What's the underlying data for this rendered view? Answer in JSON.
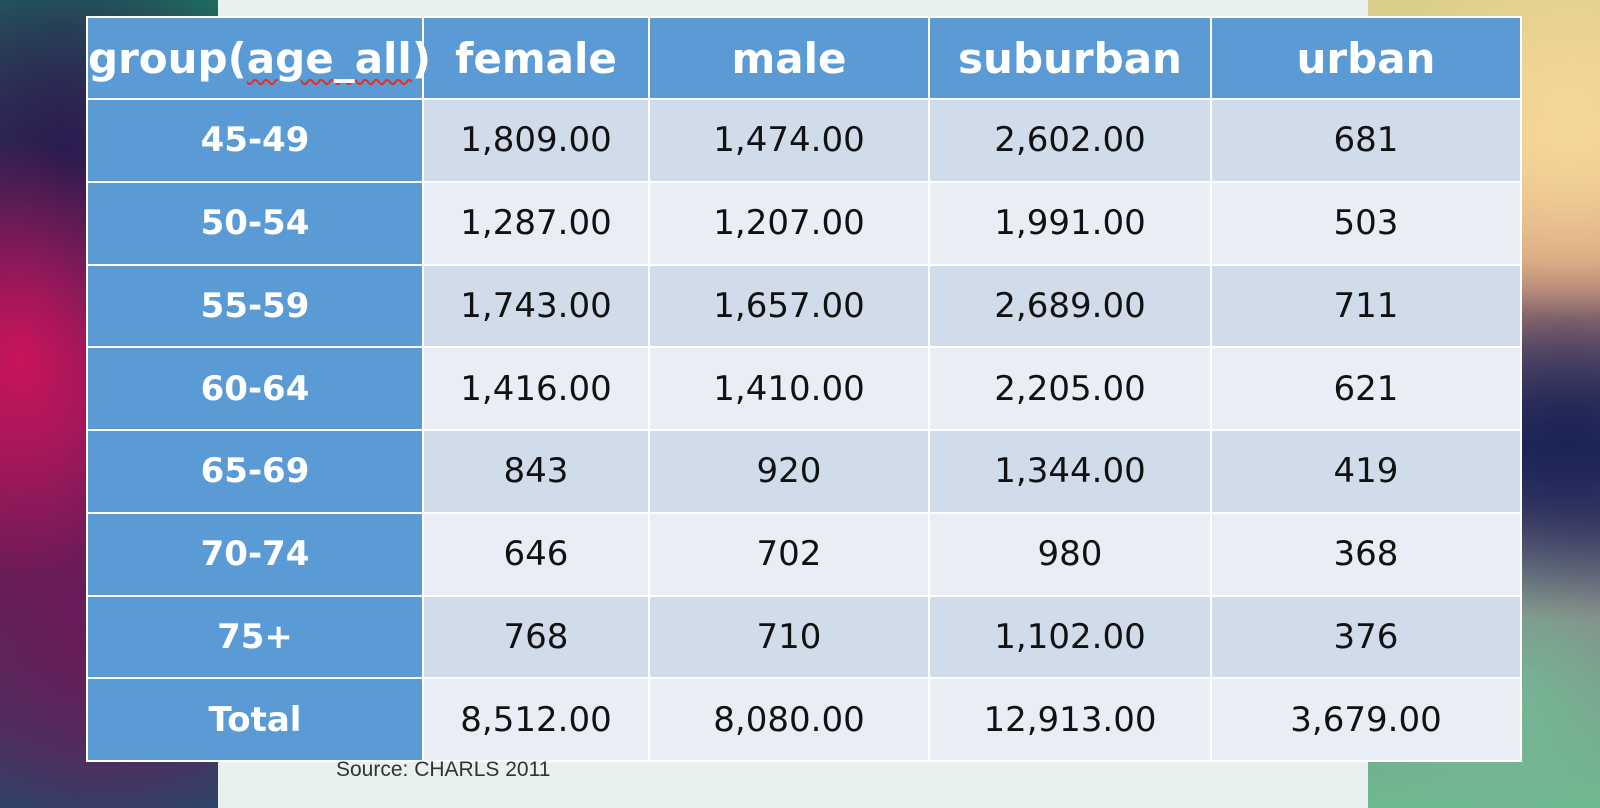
{
  "table": {
    "header": {
      "group_prefix": "group(",
      "group_squiggle": "age_all",
      "group_suffix": ")",
      "columns": [
        "female",
        "male",
        "suburban",
        "urban"
      ]
    },
    "rows": [
      {
        "label": "45-49",
        "values": [
          "1,809.00",
          "1,474.00",
          "2,602.00",
          "681"
        ]
      },
      {
        "label": "50-54",
        "values": [
          "1,287.00",
          "1,207.00",
          "1,991.00",
          "503"
        ]
      },
      {
        "label": "55-59",
        "values": [
          "1,743.00",
          "1,657.00",
          "2,689.00",
          "711"
        ]
      },
      {
        "label": "60-64",
        "values": [
          "1,416.00",
          "1,410.00",
          "2,205.00",
          "621"
        ]
      },
      {
        "label": "65-69",
        "values": [
          "843",
          "920",
          "1,344.00",
          "419"
        ]
      },
      {
        "label": "70-74",
        "values": [
          "646",
          "702",
          "980",
          "368"
        ]
      },
      {
        "label": "75+",
        "values": [
          "768",
          "710",
          "1,102.00",
          "376"
        ]
      },
      {
        "label": "Total",
        "values": [
          "8,512.00",
          "8,080.00",
          "12,913.00",
          "3,679.00"
        ]
      }
    ]
  },
  "source": "Source: CHARLS 2011",
  "colors": {
    "header_blue": "#5b9bd5",
    "row_band_dark": "#d0dcea",
    "row_band_light": "#e9edf5",
    "spellcheck_red": "#e0302a"
  }
}
